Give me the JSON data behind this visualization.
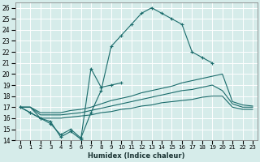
{
  "xlabel": "Humidex (Indice chaleur)",
  "xlim": [
    -0.5,
    23.5
  ],
  "ylim": [
    14,
    26.5
  ],
  "yticks": [
    14,
    15,
    16,
    17,
    18,
    19,
    20,
    21,
    22,
    23,
    24,
    25,
    26
  ],
  "xticks": [
    0,
    1,
    2,
    3,
    4,
    5,
    6,
    7,
    8,
    9,
    10,
    11,
    12,
    13,
    14,
    15,
    16,
    17,
    18,
    19,
    20,
    21,
    22,
    23
  ],
  "background_color": "#d6ecea",
  "grid_color": "#c8e0de",
  "line_color": "#1a6b6b",
  "series": [
    {
      "x": [
        0,
        1,
        2,
        3,
        4,
        5,
        6,
        7,
        8,
        9,
        10,
        11,
        12,
        13,
        14,
        15,
        16,
        17,
        18,
        19
      ],
      "y": [
        17.0,
        16.5,
        16.0,
        15.5,
        14.5,
        15.0,
        14.2,
        16.5,
        18.5,
        22.5,
        23.5,
        24.5,
        25.5,
        26.0,
        25.5,
        25.0,
        24.5,
        22.0,
        21.5,
        21.0
      ],
      "marker": "+"
    },
    {
      "x": [
        0,
        1,
        2,
        3,
        4,
        5,
        6,
        7,
        8,
        9,
        10,
        11,
        12,
        13,
        14,
        15,
        16,
        17,
        18,
        19,
        20,
        21,
        22,
        23
      ],
      "y": [
        17.0,
        16.5,
        16.0,
        15.7,
        14.3,
        14.8,
        14.1,
        20.5,
        18.8,
        19.0,
        19.2,
        null,
        null,
        null,
        null,
        null,
        null,
        null,
        null,
        null,
        null,
        null,
        null,
        null
      ],
      "marker": "+"
    },
    {
      "x": [
        0,
        1,
        2,
        3,
        4,
        5,
        6,
        7,
        8,
        9,
        10,
        11,
        12,
        13,
        14,
        15,
        16,
        17,
        18,
        19,
        20,
        21,
        22,
        23
      ],
      "y": [
        17.0,
        17.0,
        16.5,
        16.5,
        16.5,
        16.7,
        16.8,
        17.0,
        17.3,
        17.6,
        17.8,
        18.0,
        18.3,
        18.5,
        18.7,
        18.9,
        19.2,
        19.4,
        19.6,
        19.8,
        20.0,
        17.5,
        17.2,
        17.1
      ],
      "marker": null
    },
    {
      "x": [
        0,
        1,
        2,
        3,
        4,
        5,
        6,
        7,
        8,
        9,
        10,
        11,
        12,
        13,
        14,
        15,
        16,
        17,
        18,
        19,
        20,
        21,
        22,
        23
      ],
      "y": [
        17.0,
        17.0,
        16.3,
        16.3,
        16.3,
        16.4,
        16.5,
        16.7,
        16.9,
        17.1,
        17.3,
        17.5,
        17.7,
        17.9,
        18.1,
        18.3,
        18.5,
        18.6,
        18.8,
        19.0,
        18.5,
        17.3,
        17.0,
        17.0
      ],
      "marker": null
    },
    {
      "x": [
        0,
        1,
        2,
        3,
        4,
        5,
        6,
        7,
        8,
        9,
        10,
        11,
        12,
        13,
        14,
        15,
        16,
        17,
        18,
        19,
        20,
        21,
        22,
        23
      ],
      "y": [
        17.0,
        17.0,
        16.0,
        16.0,
        16.0,
        16.1,
        16.2,
        16.3,
        16.5,
        16.6,
        16.8,
        16.9,
        17.1,
        17.2,
        17.4,
        17.5,
        17.6,
        17.7,
        17.9,
        18.0,
        18.0,
        17.0,
        16.8,
        16.8
      ],
      "marker": null
    }
  ]
}
